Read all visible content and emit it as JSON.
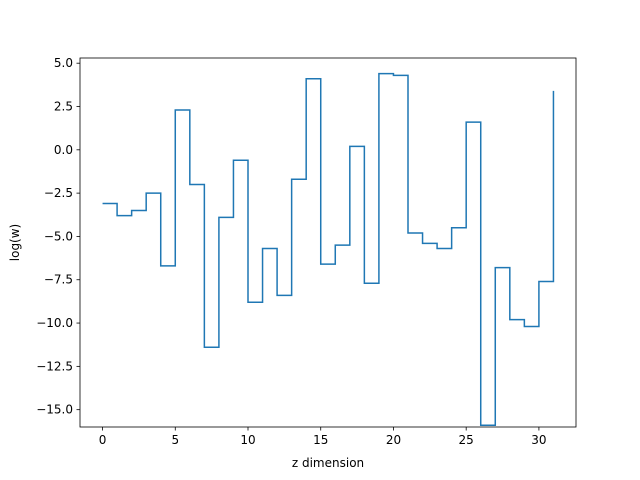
{
  "chart_data": {
    "type": "line",
    "drawstyle": "steps-post",
    "title": "",
    "xlabel": "z dimension",
    "ylabel": "log(w)",
    "xlim": [
      -1.55,
      32.55
    ],
    "ylim": [
      -16.0,
      5.3
    ],
    "xticks": [
      0,
      5,
      10,
      15,
      20,
      25,
      30
    ],
    "yticks": [
      -15.0,
      -12.5,
      -10.0,
      -7.5,
      -5.0,
      -2.5,
      0.0,
      2.5,
      5.0
    ],
    "ytick_labels": [
      "−15.0",
      "−12.5",
      "−10.0",
      "−7.5",
      "−5.0",
      "−2.5",
      "0.0",
      "2.5",
      "5.0"
    ],
    "grid": false,
    "line_color": "#1f77b4",
    "series": [
      {
        "x": [
          0,
          1,
          2,
          3,
          4,
          5,
          6,
          7,
          8,
          9,
          10,
          11,
          12,
          13,
          14,
          15,
          16,
          17,
          18,
          19,
          20,
          21,
          22,
          23,
          24,
          25,
          26,
          27,
          28,
          29,
          30,
          31
        ],
        "values": [
          -3.1,
          -3.8,
          -3.5,
          -2.5,
          -6.7,
          2.3,
          -2.0,
          -11.4,
          -3.9,
          -0.6,
          -8.8,
          -5.7,
          -8.4,
          -1.7,
          4.1,
          -6.6,
          -5.5,
          0.2,
          -7.7,
          4.4,
          4.3,
          -4.8,
          -5.4,
          -5.7,
          -4.5,
          1.6,
          -15.9,
          -6.8,
          -9.8,
          -10.2,
          -7.6,
          3.4
        ]
      }
    ]
  }
}
